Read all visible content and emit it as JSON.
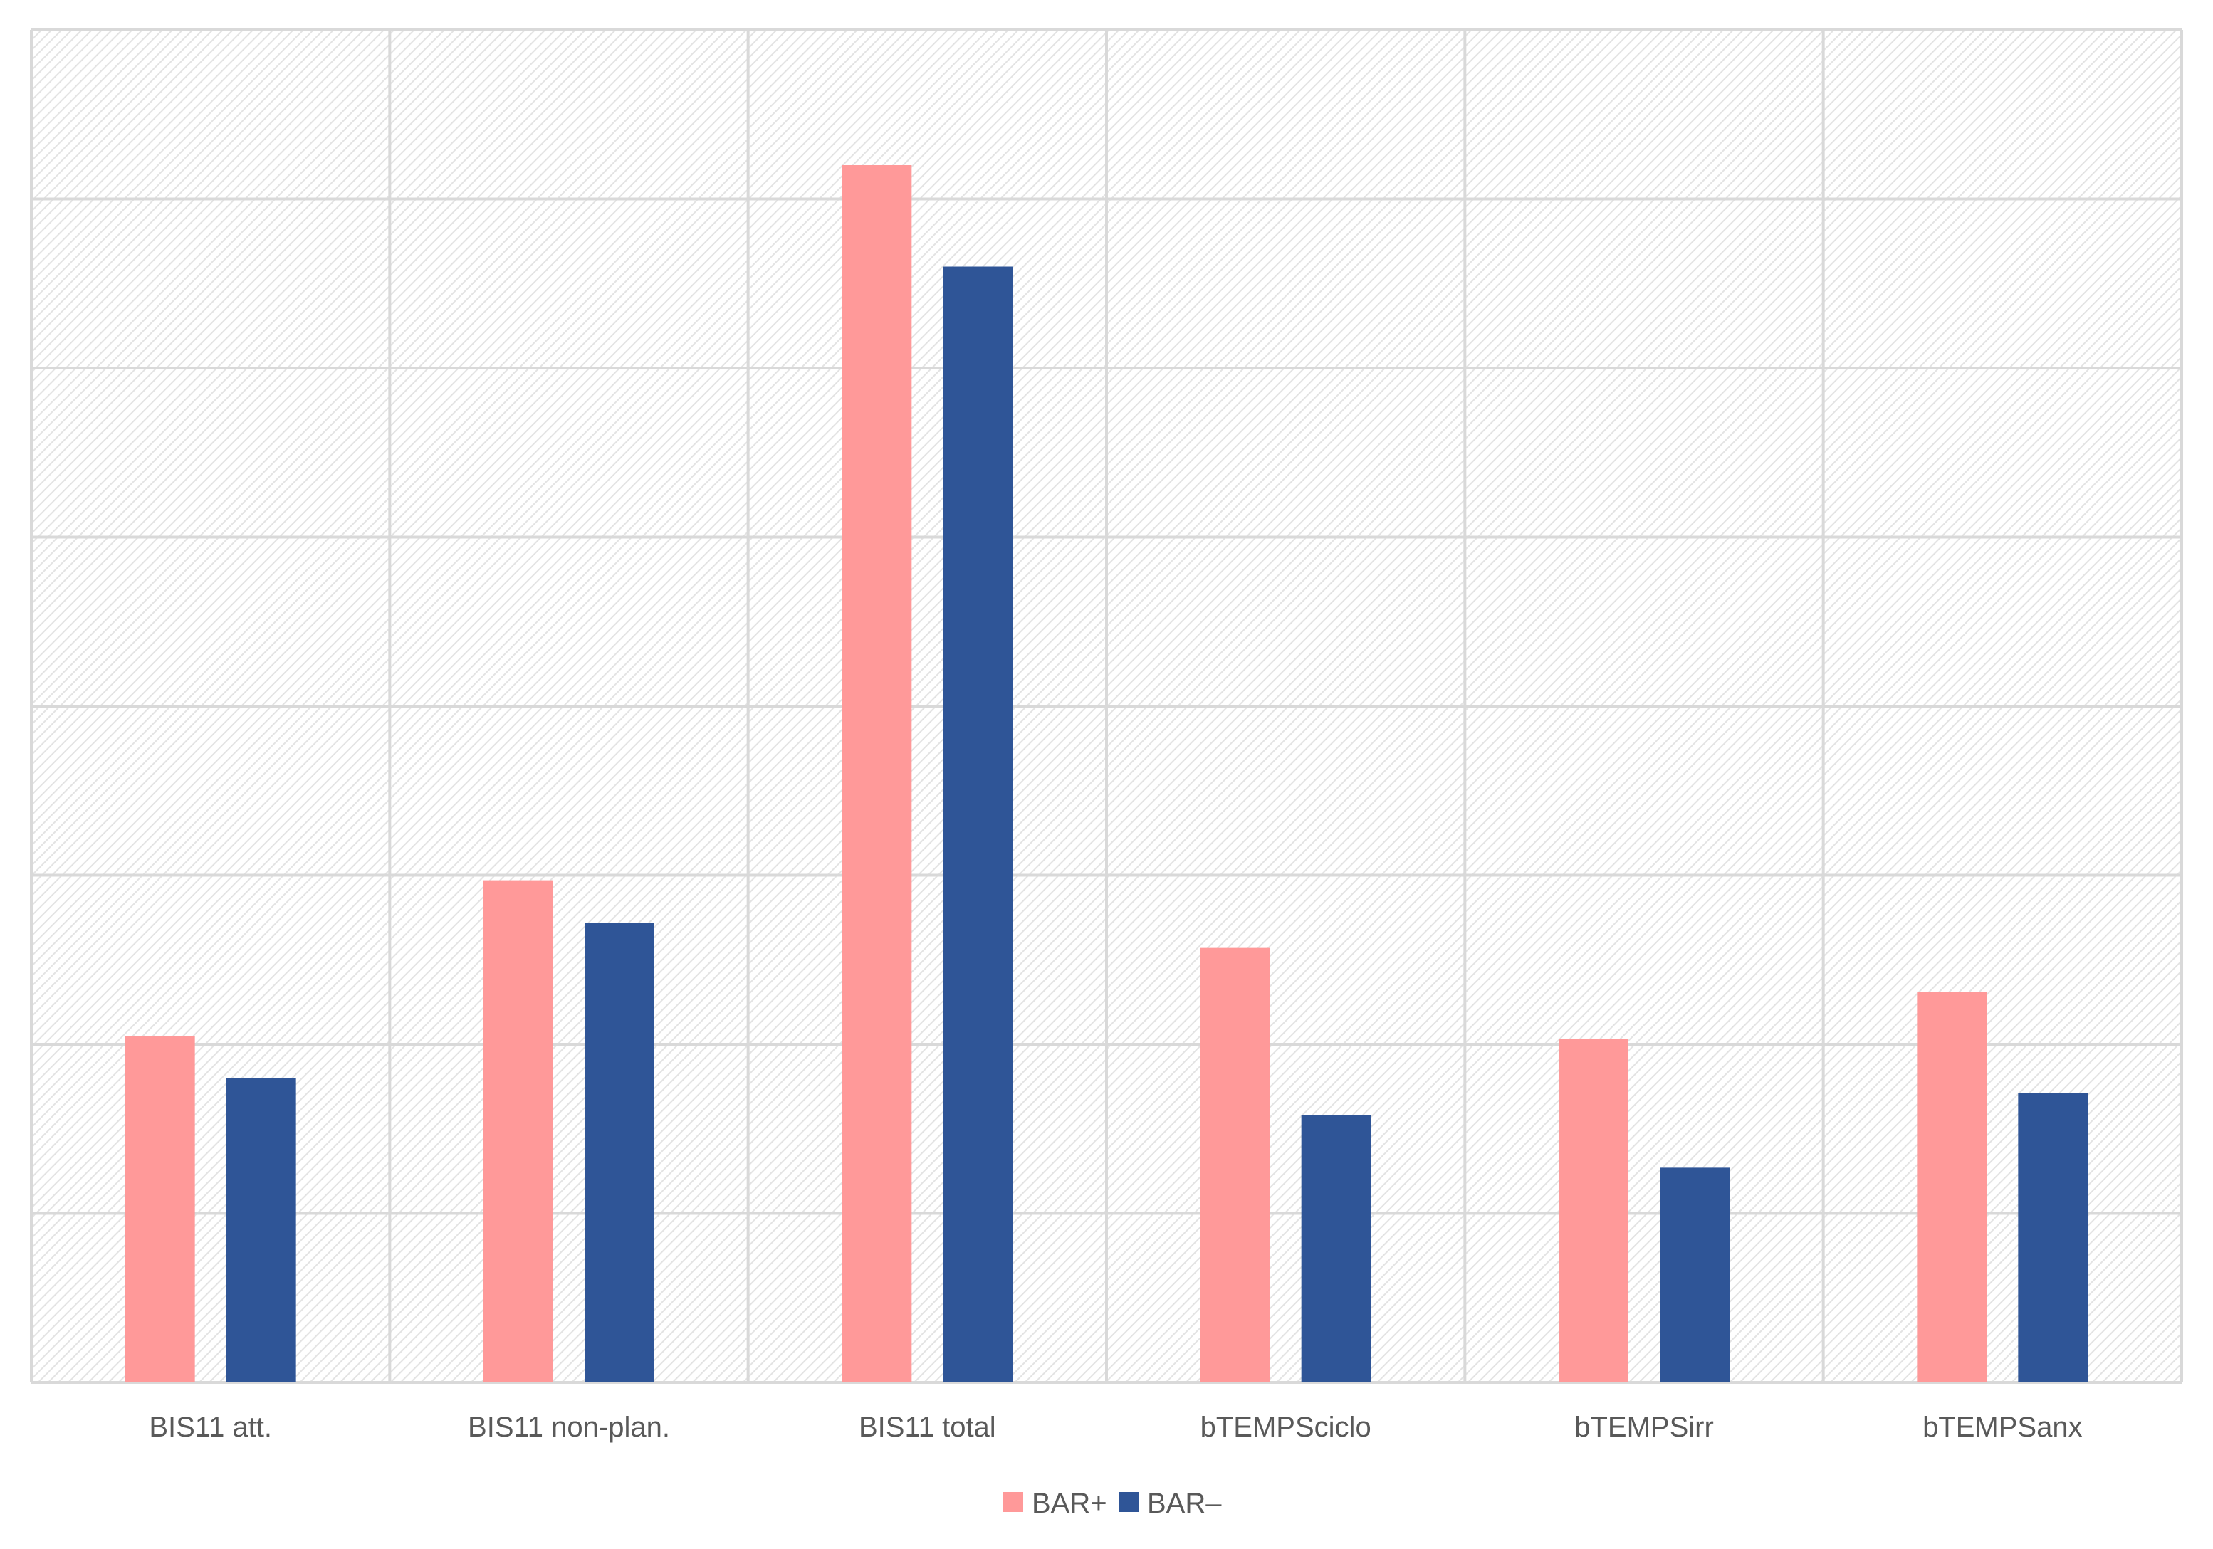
{
  "chart_data": {
    "type": "bar",
    "title": "",
    "xlabel": "",
    "ylabel": "",
    "categories": [
      "BIS11 att.",
      "BIS11 non-plan.",
      "BIS11 total",
      "bTEMPSciclo",
      "bTEMPSirr",
      "bTEMPSanx"
    ],
    "series": [
      {
        "name": "BAR+",
        "color": "#ff9999",
        "values": [
          20.5,
          29.7,
          72.0,
          25.7,
          20.3,
          23.1
        ]
      },
      {
        "name": "BAR–",
        "color": "#2f5597",
        "values": [
          18.0,
          27.2,
          66.0,
          15.8,
          12.7,
          17.1
        ]
      }
    ],
    "ylim": [
      0,
      80
    ],
    "ytick_step": 10,
    "y_tick_labels_visible": false,
    "grid": {
      "horizontal": true,
      "vertical": true,
      "color": "#d9d9d9"
    },
    "plot_background": "hatched-light-gray",
    "legend": {
      "position": "bottom-center"
    }
  }
}
